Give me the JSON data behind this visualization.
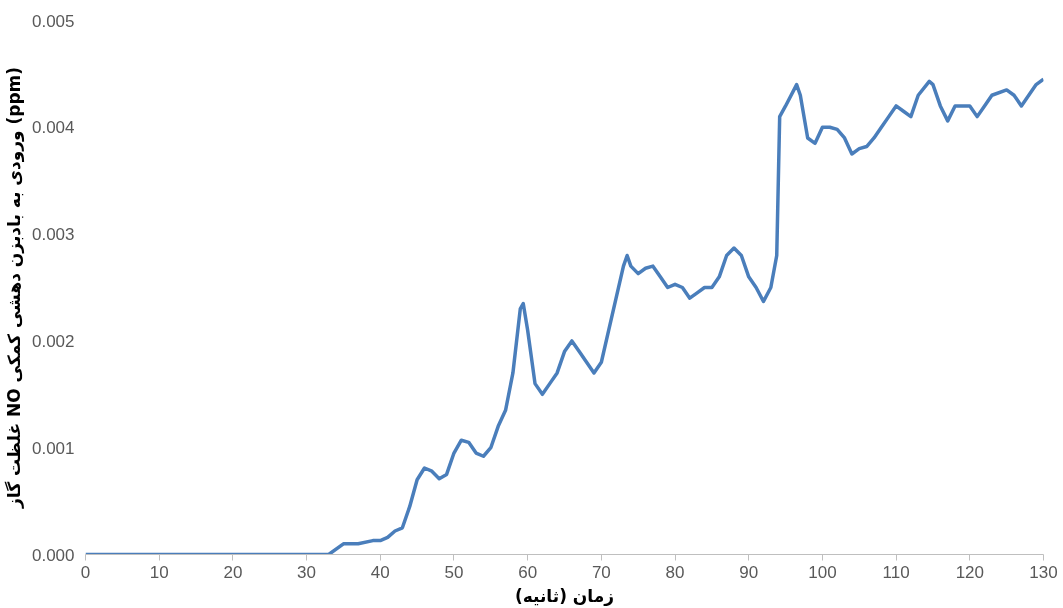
{
  "chart_data": {
    "type": "line",
    "xlabel": "زمان (ثانیه)",
    "ylabel": "غلظت گاز NO ورودی به بادبزن دهشی کمکی (ppm)",
    "x": [
      0,
      5,
      10,
      15,
      20,
      25,
      30,
      33,
      35,
      37,
      39,
      40,
      41,
      42,
      43,
      44,
      45,
      46,
      47,
      48,
      49,
      50,
      51,
      52,
      53,
      54,
      55,
      56,
      57,
      58,
      59,
      59.4,
      60,
      61,
      62,
      63,
      64,
      65,
      66,
      67,
      68,
      69,
      70,
      71,
      72,
      73,
      73.5,
      74,
      75,
      76,
      77,
      78,
      79,
      80,
      81,
      82,
      83,
      84,
      85,
      86,
      87,
      88,
      89,
      90,
      91,
      92,
      93,
      93.8,
      94.2,
      95,
      96.5,
      97,
      98,
      99,
      100,
      101,
      102,
      103,
      104,
      105,
      106,
      107,
      108,
      109,
      110,
      111,
      112,
      113,
      114.5,
      115,
      116,
      117,
      118,
      120,
      121,
      122,
      123,
      125,
      126,
      127,
      128,
      129,
      130
    ],
    "series": [
      {
        "color": "#4a7ebb",
        "values": [
          0,
          0,
          0,
          0,
          0,
          0,
          0,
          0,
          0.0001,
          0.0001,
          0.00013,
          0.00013,
          0.00016,
          0.00022,
          0.00025,
          0.00045,
          0.0007,
          0.00081,
          0.00078,
          0.00071,
          0.00075,
          0.00095,
          0.00107,
          0.00105,
          0.00095,
          0.00092,
          0.001,
          0.0012,
          0.00135,
          0.0017,
          0.0023,
          0.00235,
          0.0021,
          0.0016,
          0.0015,
          0.0016,
          0.0017,
          0.0019,
          0.002,
          0.0019,
          0.0018,
          0.0017,
          0.0018,
          0.0021,
          0.0024,
          0.0027,
          0.0028,
          0.0027,
          0.00263,
          0.00268,
          0.0027,
          0.0026,
          0.0025,
          0.00253,
          0.0025,
          0.0024,
          0.00245,
          0.0025,
          0.0025,
          0.0026,
          0.0028,
          0.00287,
          0.0028,
          0.0026,
          0.0025,
          0.00237,
          0.0025,
          0.0028,
          0.0041,
          0.0042,
          0.0044,
          0.0043,
          0.0039,
          0.00385,
          0.004,
          0.004,
          0.00398,
          0.0039,
          0.00375,
          0.0038,
          0.00382,
          0.0039,
          0.004,
          0.0041,
          0.0042,
          0.00415,
          0.0041,
          0.0043,
          0.00443,
          0.0044,
          0.0042,
          0.00406,
          0.0042,
          0.0042,
          0.0041,
          0.0042,
          0.0043,
          0.00435,
          0.0043,
          0.0042,
          0.0043,
          0.0044,
          0.00445
        ]
      }
    ],
    "xlim": [
      0,
      130
    ],
    "xticks": [
      0,
      10,
      20,
      30,
      40,
      50,
      60,
      70,
      80,
      90,
      100,
      110,
      120,
      130
    ],
    "ylim": [
      0,
      0.005
    ],
    "yticks": [
      {
        "value": 0,
        "label": "0.000"
      },
      {
        "value": 0.001,
        "label": "0.001"
      },
      {
        "value": 0.002,
        "label": "0.002"
      },
      {
        "value": 0.003,
        "label": "0.003"
      },
      {
        "value": 0.004,
        "label": "0.004"
      },
      {
        "value": 0.005,
        "label": "0.005"
      }
    ],
    "grid": false,
    "marker": "none",
    "line_style": "solid"
  }
}
